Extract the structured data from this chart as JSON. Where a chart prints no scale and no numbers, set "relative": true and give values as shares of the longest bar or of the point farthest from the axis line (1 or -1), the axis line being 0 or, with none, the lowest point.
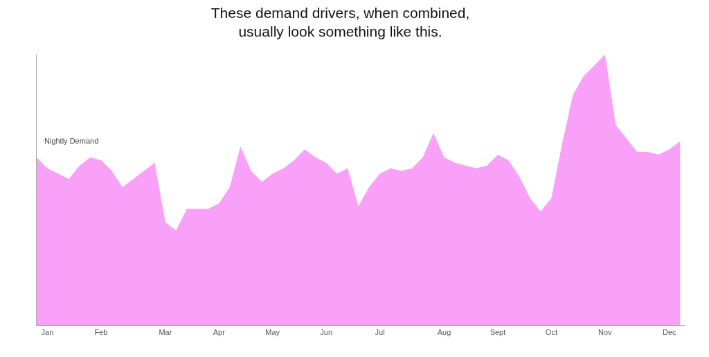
{
  "chart_data": {
    "type": "area",
    "title": "These demand drivers, when combined,\nusually look something like this.",
    "ylabel": "Nightly Demand",
    "relative": true,
    "tick_labels": "x",
    "legend": false,
    "categories": [
      null,
      "Jan",
      null,
      null,
      null,
      null,
      "Feb",
      null,
      null,
      null,
      null,
      null,
      "Mar",
      null,
      null,
      null,
      null,
      "Apr",
      null,
      null,
      null,
      null,
      "May",
      null,
      null,
      null,
      null,
      "Jun",
      null,
      null,
      null,
      null,
      "Jul",
      null,
      null,
      null,
      null,
      null,
      "Aug",
      null,
      null,
      null,
      null,
      "Sept",
      null,
      null,
      null,
      null,
      "Oct",
      null,
      null,
      null,
      null,
      "Nov",
      null,
      null,
      null,
      null,
      null,
      "Dec",
      null
    ],
    "series": [
      {
        "color": "#f9a0f9",
        "values": [
          0.62,
          0.58,
          0.56,
          0.54,
          0.59,
          0.62,
          0.61,
          0.57,
          0.51,
          0.54,
          0.57,
          0.6,
          0.38,
          0.35,
          0.43,
          0.43,
          0.43,
          0.45,
          0.51,
          0.66,
          0.57,
          0.53,
          0.56,
          0.58,
          0.61,
          0.65,
          0.62,
          0.6,
          0.56,
          0.58,
          0.44,
          0.51,
          0.56,
          0.58,
          0.57,
          0.58,
          0.62,
          0.71,
          0.62,
          0.6,
          0.59,
          0.58,
          0.59,
          0.63,
          0.61,
          0.55,
          0.47,
          0.42,
          0.47,
          0.67,
          0.85,
          0.92,
          0.96,
          1,
          0.74,
          0.69,
          0.64,
          0.64,
          0.63,
          0.65,
          0.68
        ]
      }
    ]
  }
}
